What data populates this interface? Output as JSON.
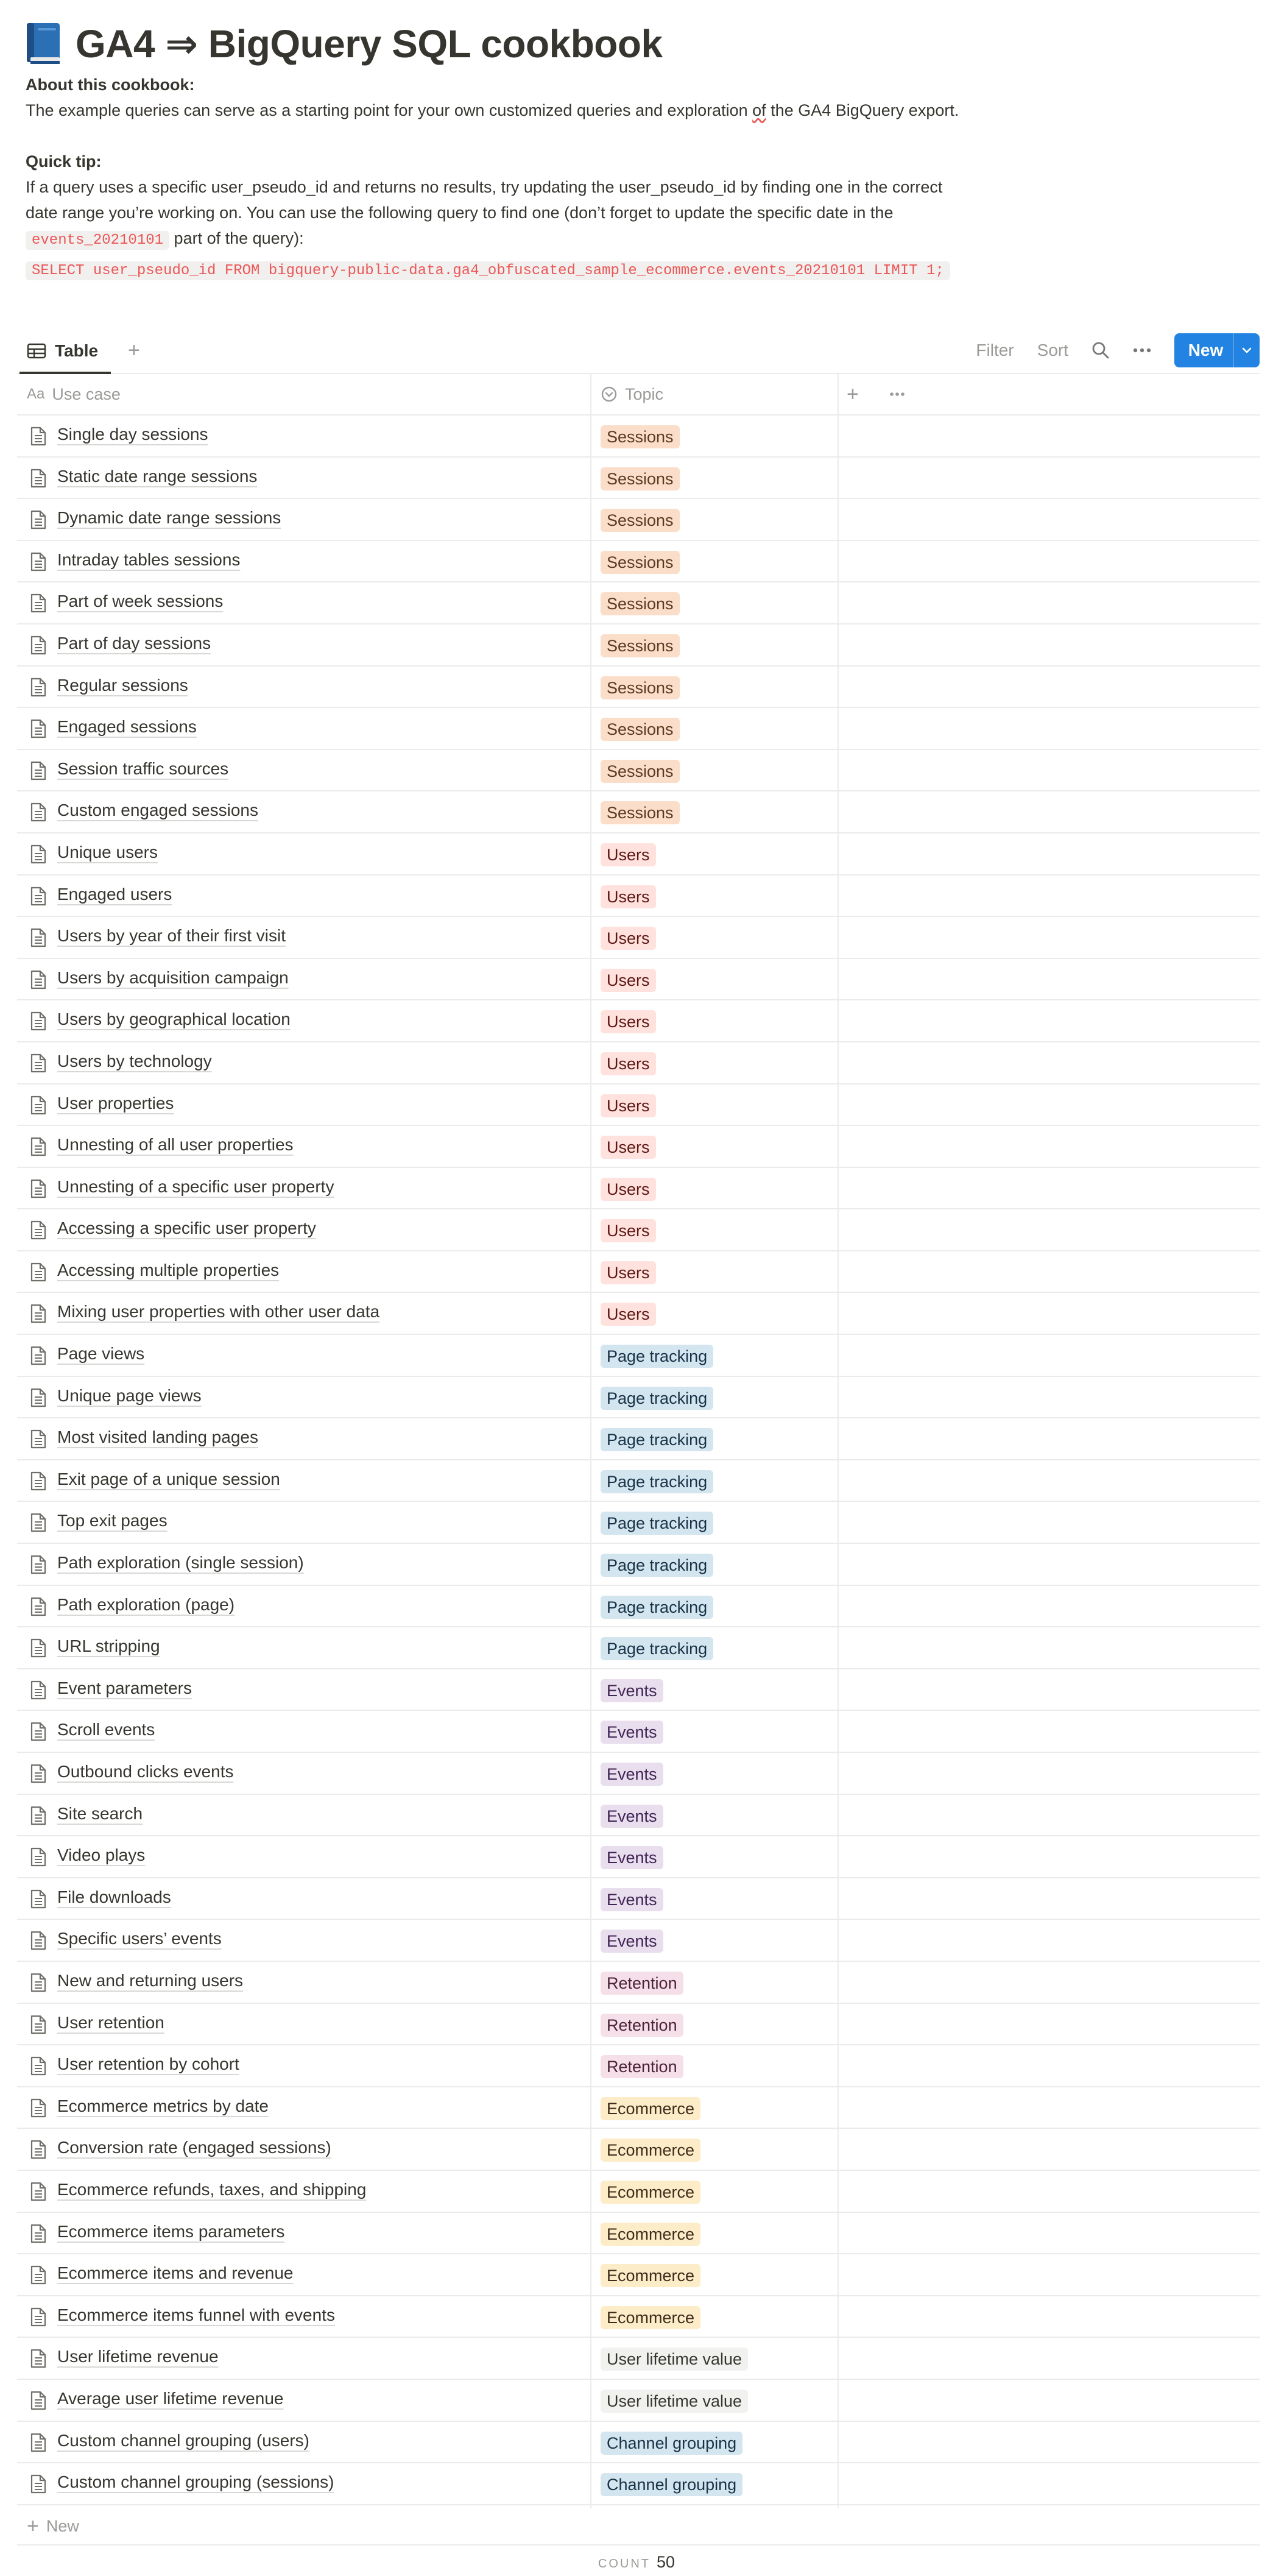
{
  "page": {
    "title": "GA4 ⇒ BigQuery SQL cookbook",
    "about_heading": "About this cookbook:",
    "about_text_1": "The example queries can serve as a starting point for your own customized queries and exploration ",
    "about_text_of": "of",
    "about_text_2": " the GA4 BigQuery export.",
    "tip_heading": "Quick tip:",
    "tip_text_1": "If a query uses a specific user_pseudo_id and returns no results, try updating the user_pseudo_id by finding one in the correct date range you’re working on. You can use the following query to find one (don’t forget to update the specific date in the ",
    "tip_code": "events_20210101",
    "tip_text_2": " part of the query):",
    "tip_query": "SELECT user_pseudo_id FROM bigquery-public-data.ga4_obfuscated_sample_ecommerce.events_20210101 LIMIT 1;"
  },
  "viewbar": {
    "tab_label": "Table",
    "filter_label": "Filter",
    "sort_label": "Sort",
    "new_label": "New"
  },
  "table": {
    "col_usecase": "Use case",
    "col_usecase_prefix": "Aa",
    "col_topic": "Topic",
    "new_row_label": "New",
    "count_label": "COUNT",
    "count_value": "50"
  },
  "topic_colors": {
    "Sessions": {
      "bg": "#fadec9",
      "fg": "#5c3b23"
    },
    "Users": {
      "bg": "#ffe2dd",
      "fg": "#5d1715"
    },
    "Page tracking": {
      "bg": "#d3e5ef",
      "fg": "#183347"
    },
    "Events": {
      "bg": "#e8deee",
      "fg": "#412454"
    },
    "Retention": {
      "bg": "#f5e0e9",
      "fg": "#4c2337"
    },
    "Ecommerce": {
      "bg": "#fdecc8",
      "fg": "#402c1b"
    },
    "User lifetime value": {
      "bg": "#f1f1ef",
      "fg": "#37352f"
    },
    "Channel grouping": {
      "bg": "#d3e5ef",
      "fg": "#183347"
    }
  },
  "rows": [
    {
      "name": "Single day sessions",
      "topic": "Sessions"
    },
    {
      "name": "Static date range sessions",
      "topic": "Sessions"
    },
    {
      "name": "Dynamic date range sessions",
      "topic": "Sessions"
    },
    {
      "name": "Intraday tables sessions",
      "topic": "Sessions"
    },
    {
      "name": "Part of week sessions",
      "topic": "Sessions"
    },
    {
      "name": "Part of day sessions",
      "topic": "Sessions"
    },
    {
      "name": "Regular sessions",
      "topic": "Sessions"
    },
    {
      "name": "Engaged sessions",
      "topic": "Sessions"
    },
    {
      "name": "Session traffic sources",
      "topic": "Sessions"
    },
    {
      "name": "Custom engaged sessions",
      "topic": "Sessions"
    },
    {
      "name": "Unique users",
      "topic": "Users"
    },
    {
      "name": "Engaged users",
      "topic": "Users"
    },
    {
      "name": "Users by year of their first visit",
      "topic": "Users"
    },
    {
      "name": "Users by acquisition campaign",
      "topic": "Users"
    },
    {
      "name": "Users by geographical location",
      "topic": "Users"
    },
    {
      "name": "Users by technology",
      "topic": "Users"
    },
    {
      "name": "User properties",
      "topic": "Users"
    },
    {
      "name": "Unnesting of all user properties",
      "topic": "Users"
    },
    {
      "name": "Unnesting of a specific user property",
      "topic": "Users"
    },
    {
      "name": "Accessing a specific user property",
      "topic": "Users"
    },
    {
      "name": "Accessing multiple properties",
      "topic": "Users"
    },
    {
      "name": "Mixing user properties with other user data",
      "topic": "Users"
    },
    {
      "name": "Page views",
      "topic": "Page tracking"
    },
    {
      "name": "Unique page views",
      "topic": "Page tracking"
    },
    {
      "name": "Most visited landing pages",
      "topic": "Page tracking"
    },
    {
      "name": "Exit page of a unique session",
      "topic": "Page tracking"
    },
    {
      "name": "Top exit pages",
      "topic": "Page tracking"
    },
    {
      "name": "Path exploration (single session)",
      "topic": "Page tracking"
    },
    {
      "name": "Path exploration (page)",
      "topic": "Page tracking"
    },
    {
      "name": "URL stripping",
      "topic": "Page tracking"
    },
    {
      "name": "Event parameters",
      "topic": "Events"
    },
    {
      "name": "Scroll events",
      "topic": "Events"
    },
    {
      "name": "Outbound clicks events",
      "topic": "Events"
    },
    {
      "name": "Site search",
      "topic": "Events"
    },
    {
      "name": "Video plays",
      "topic": "Events"
    },
    {
      "name": "File downloads",
      "topic": "Events"
    },
    {
      "name": "Specific users’ events",
      "topic": "Events"
    },
    {
      "name": "New and returning users",
      "topic": "Retention"
    },
    {
      "name": "User retention",
      "topic": "Retention"
    },
    {
      "name": "User retention by cohort",
      "topic": "Retention"
    },
    {
      "name": "Ecommerce metrics by date",
      "topic": "Ecommerce"
    },
    {
      "name": "Conversion rate (engaged sessions)",
      "topic": "Ecommerce"
    },
    {
      "name": "Ecommerce refunds, taxes, and shipping",
      "topic": "Ecommerce"
    },
    {
      "name": "Ecommerce items parameters",
      "topic": "Ecommerce"
    },
    {
      "name": "Ecommerce items and revenue",
      "topic": "Ecommerce"
    },
    {
      "name": "Ecommerce items funnel with events",
      "topic": "Ecommerce"
    },
    {
      "name": "User lifetime revenue",
      "topic": "User lifetime value"
    },
    {
      "name": "Average user lifetime revenue",
      "topic": "User lifetime value"
    },
    {
      "name": "Custom channel grouping (users)",
      "topic": "Channel grouping"
    },
    {
      "name": "Custom channel grouping (sessions)",
      "topic": "Channel grouping"
    }
  ]
}
